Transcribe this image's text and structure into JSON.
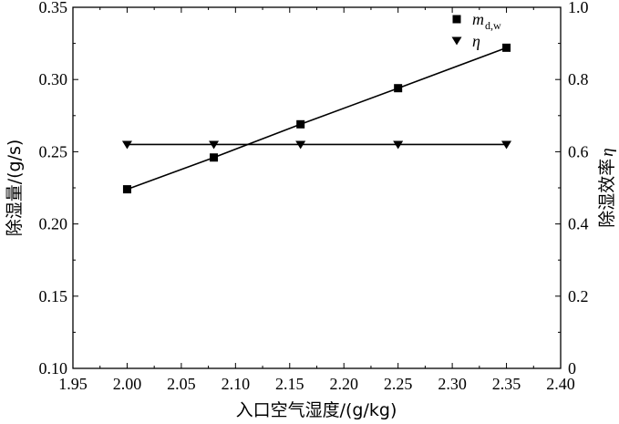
{
  "chart_data": {
    "type": "line",
    "x": [
      2.0,
      2.08,
      2.16,
      2.25,
      2.35
    ],
    "xlabel": "入口空气湿度/(g/kg)",
    "xlim": [
      1.95,
      2.4
    ],
    "xticks": [
      "1.95",
      "2.00",
      "2.05",
      "2.10",
      "2.15",
      "2.20",
      "2.25",
      "2.30",
      "2.35",
      "2.40"
    ],
    "ylabel_left": "除湿量/(g/s)",
    "ylim_left": [
      0.1,
      0.35
    ],
    "yticks_left": [
      "0.10",
      "0.15",
      "0.20",
      "0.25",
      "0.30",
      "0.35"
    ],
    "ylabel_right_text": "除湿效率",
    "ylabel_right_symbol": "η",
    "ylim_right": [
      0,
      1.0
    ],
    "yticks_right": [
      "0",
      "0.2",
      "0.4",
      "0.6",
      "0.8",
      "1.0"
    ],
    "legend_position": "top-right",
    "grid": false,
    "series": [
      {
        "name_main": "m",
        "name_sub": "d,w",
        "axis": "left",
        "marker": "square",
        "values": [
          0.224,
          0.246,
          0.269,
          0.294,
          0.322
        ]
      },
      {
        "name_main": "η",
        "name_sub": "",
        "axis": "right",
        "marker": "triangle-down",
        "values": [
          0.62,
          0.62,
          0.62,
          0.62,
          0.62
        ]
      }
    ]
  }
}
